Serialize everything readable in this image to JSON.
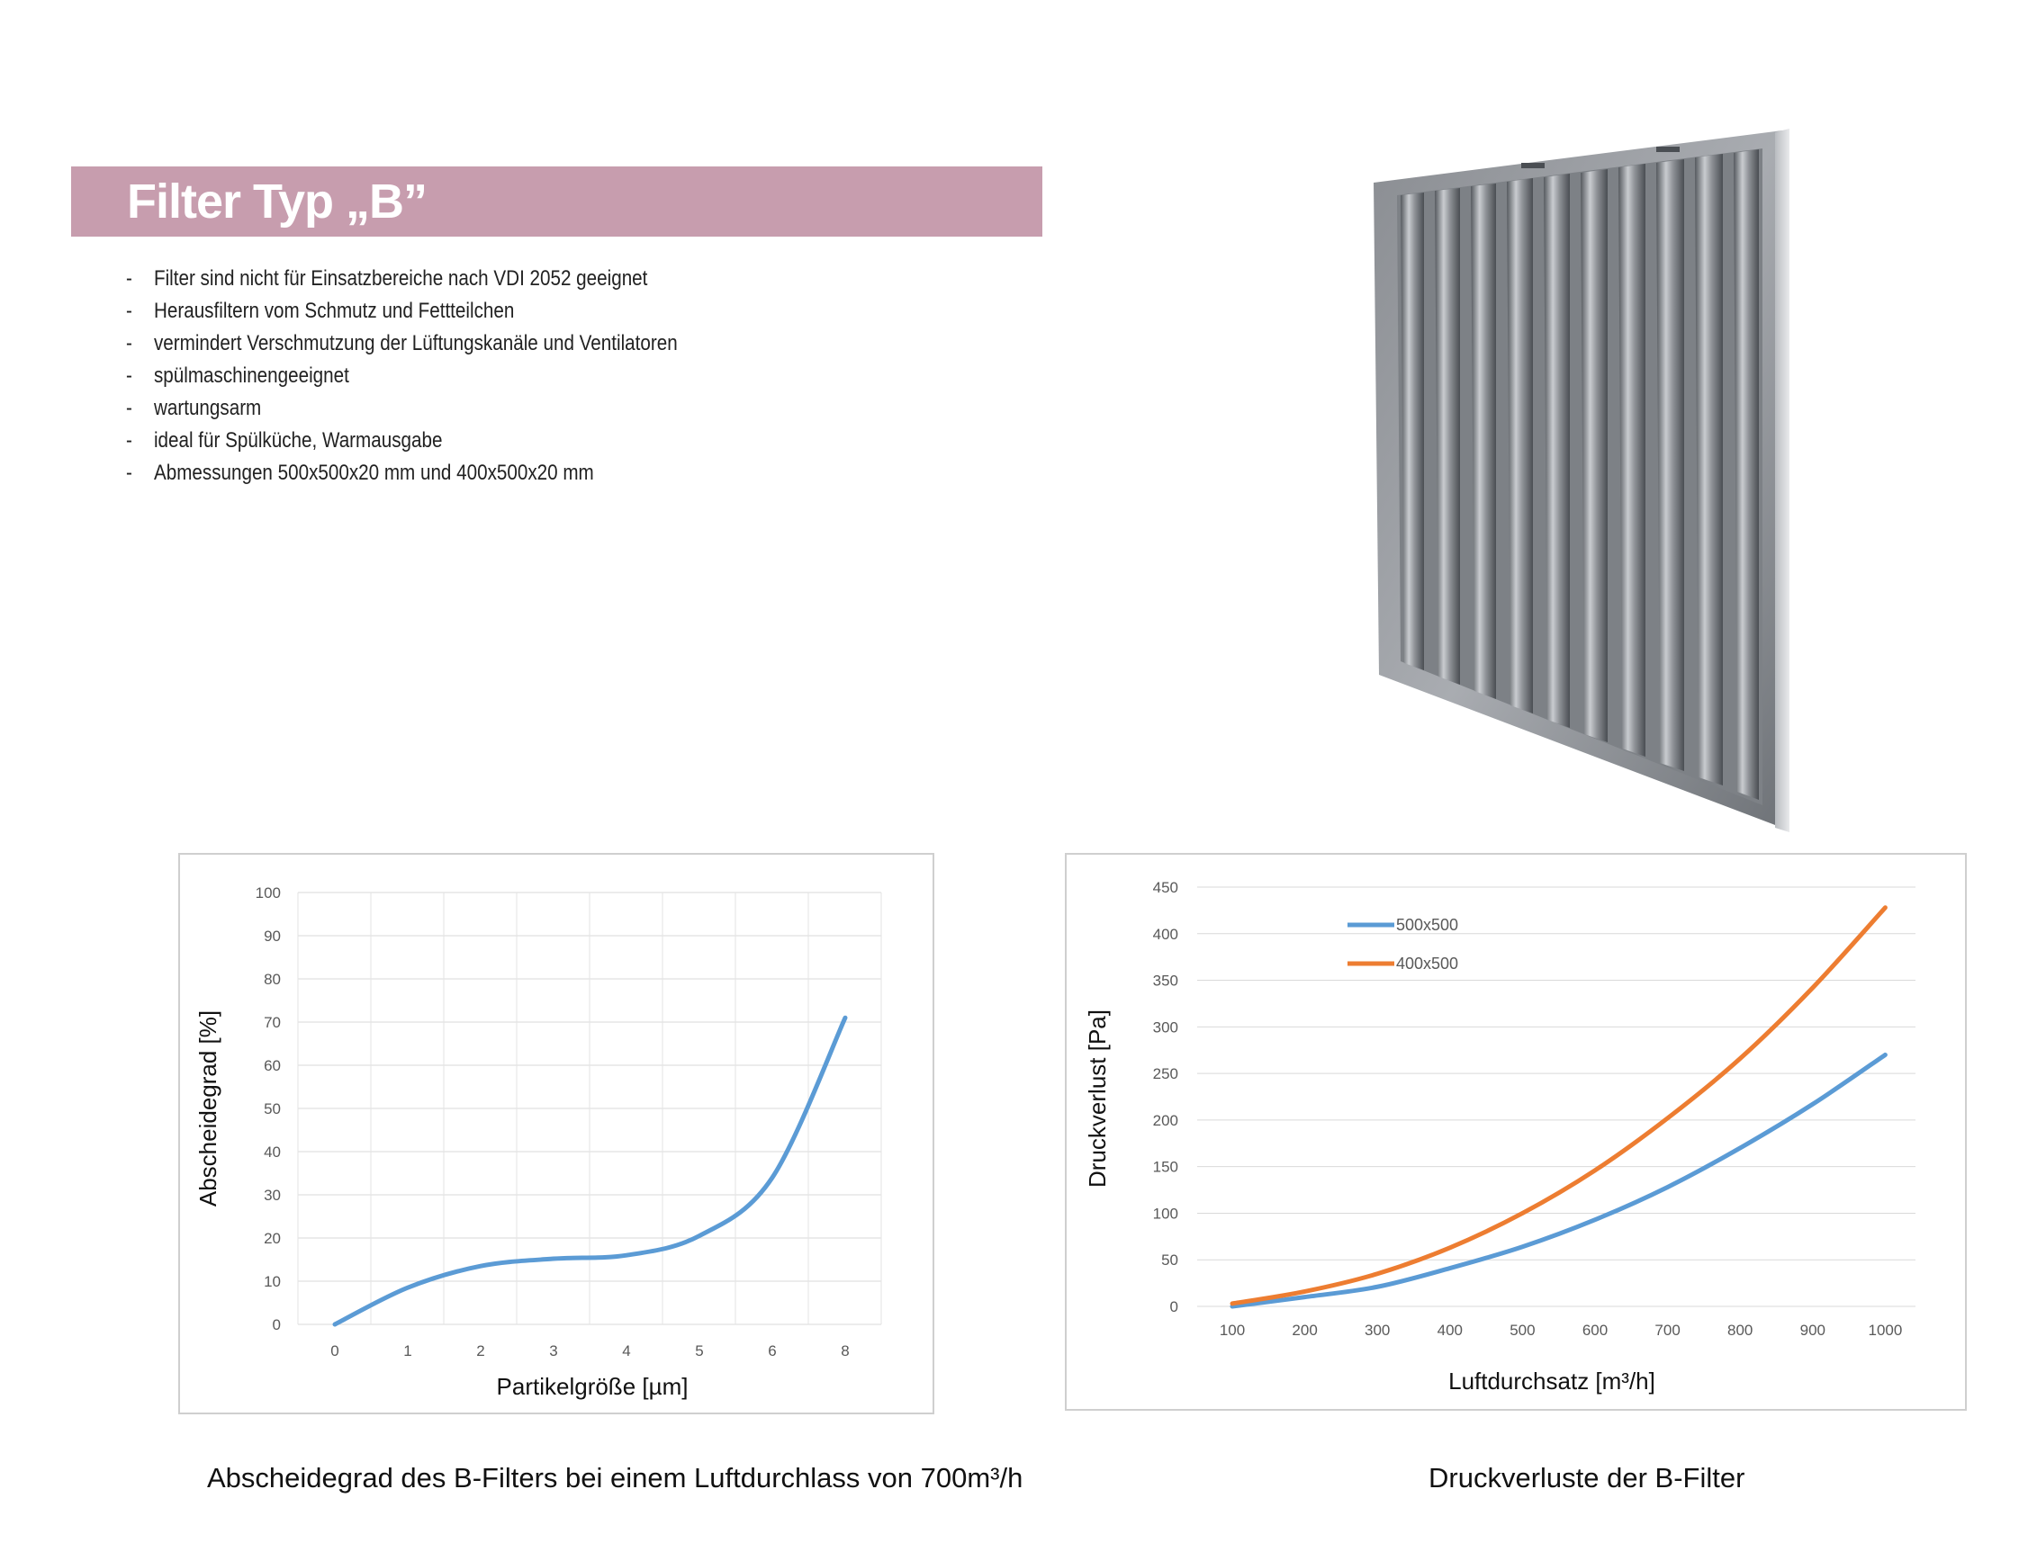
{
  "header": {
    "title": "Filter Typ „B”"
  },
  "features": [
    "Filter sind nicht für Einsatzbereiche nach VDI 2052 geeignet",
    "Herausfiltern vom Schmutz und Fettteilchen",
    "vermindert Verschmutzung der Lüftungskanäle und Ventilatoren",
    "spülmaschinengeeignet",
    "wartungsarm",
    "ideal für Spülküche, Warmausgabe",
    "Abmessungen 500x500x20 mm und 400x500x20 mm"
  ],
  "bullet_marker": "-",
  "captions": {
    "left": "Abscheidegrad des B-Filters bei einem Luftdurchlass von 700m³/h",
    "right": "Druckverluste der B-Filter"
  },
  "chart_data": [
    {
      "type": "line",
      "title": "",
      "xlabel": "Partikelgröße [µm]",
      "ylabel": "Abscheidegrad [%]",
      "categories": [
        "0",
        "1",
        "2",
        "3",
        "4",
        "5",
        "6",
        "8"
      ],
      "x": [
        0,
        1,
        2,
        3,
        4,
        5,
        6,
        7
      ],
      "series": [
        {
          "name": "",
          "color": "#5b9bd5",
          "values": [
            0,
            8.5,
            13.5,
            15.2,
            16,
            20.5,
            34,
            71
          ]
        }
      ],
      "yticks": [
        0,
        10,
        20,
        30,
        40,
        50,
        60,
        70,
        80,
        90,
        100
      ],
      "ylim": [
        0,
        100
      ],
      "grid": true,
      "smooth": true
    },
    {
      "type": "line",
      "title": "",
      "xlabel": "Luftdurchsatz [m³/h]",
      "ylabel": "Druckverlust [Pa]",
      "categories": [
        "100",
        "200",
        "300",
        "400",
        "500",
        "600",
        "700",
        "800",
        "900",
        "1000"
      ],
      "x": [
        100,
        200,
        300,
        400,
        500,
        600,
        700,
        800,
        900,
        1000
      ],
      "series": [
        {
          "name": "500x500",
          "color": "#5b9bd5",
          "values": [
            0,
            10,
            21,
            41,
            64,
            93,
            128,
            170,
            217,
            270
          ]
        },
        {
          "name": "400x500",
          "color": "#ed7d31",
          "values": [
            3,
            16,
            35,
            63,
            100,
            146,
            202,
            266,
            342,
            428
          ]
        }
      ],
      "yticks": [
        0,
        50,
        100,
        150,
        200,
        250,
        300,
        350,
        400,
        450
      ],
      "ylim": [
        0,
        450
      ],
      "grid": true,
      "legend": "top-left",
      "smooth": true
    }
  ]
}
